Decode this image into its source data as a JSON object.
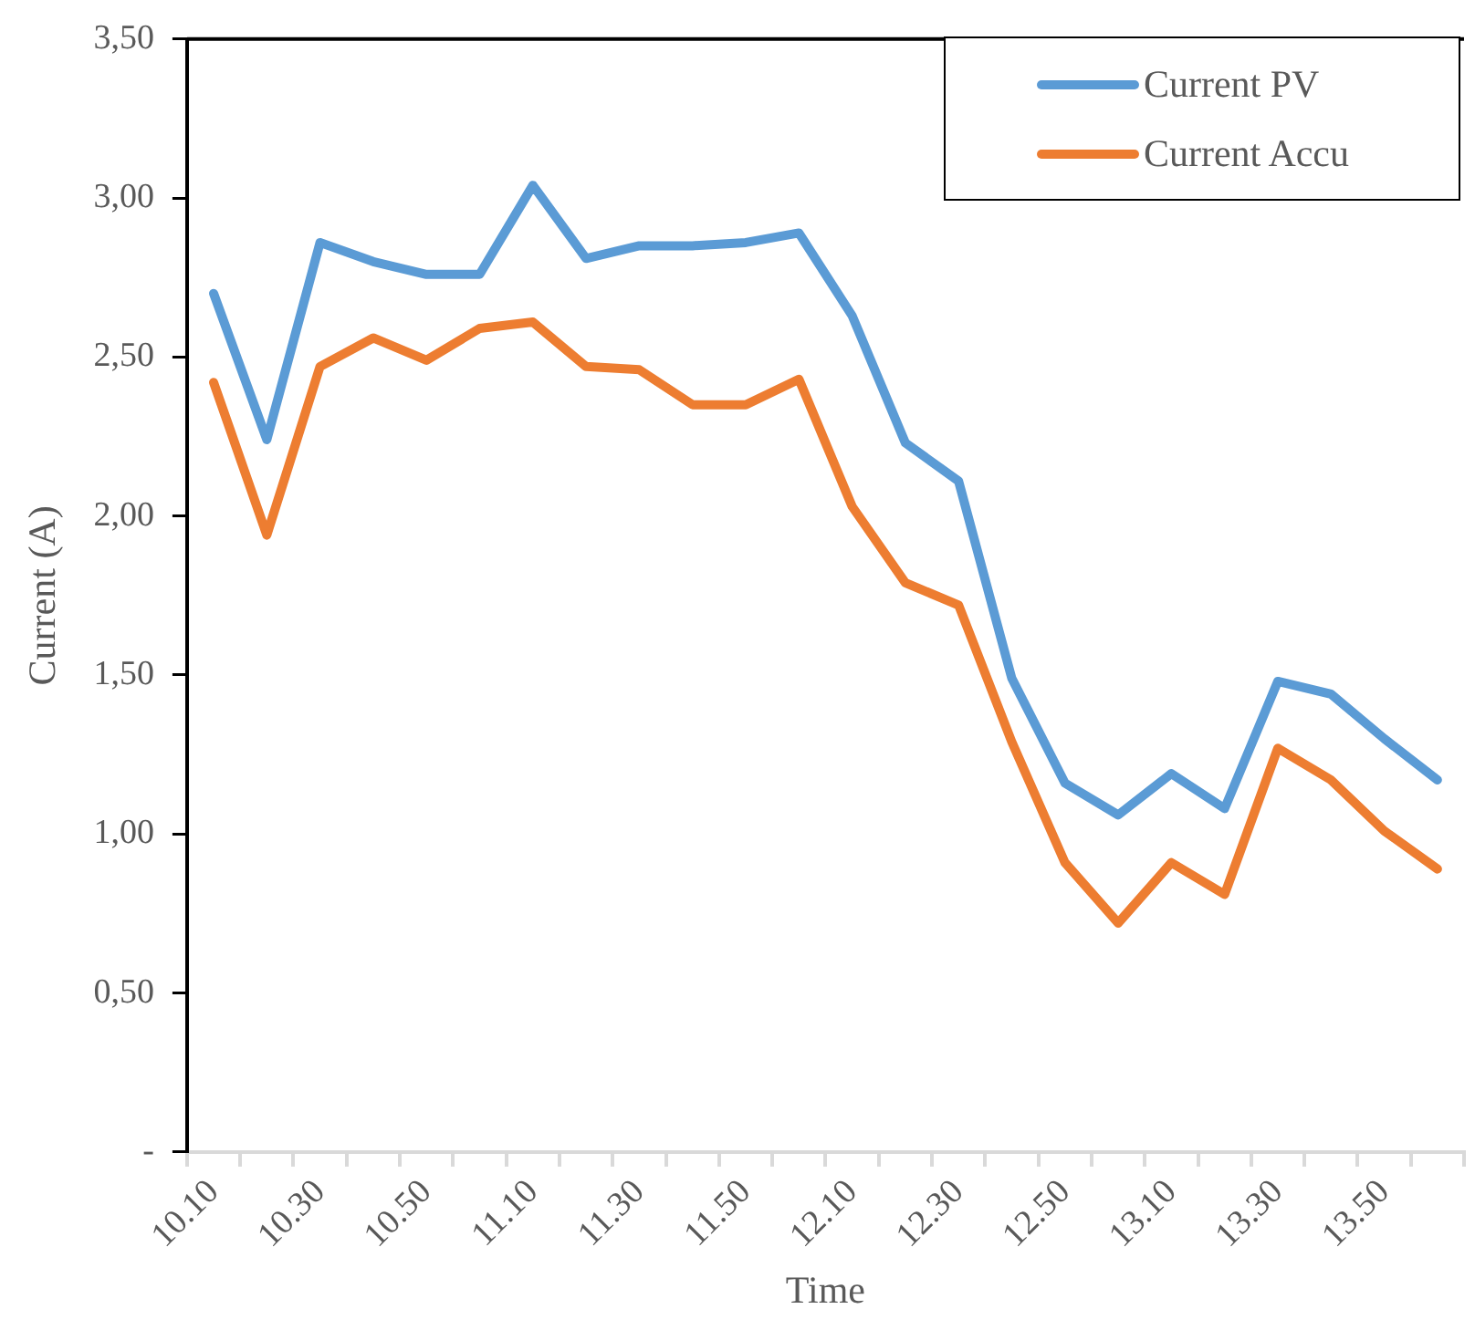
{
  "chart_data": {
    "type": "line",
    "xlabel": "Time",
    "ylabel": "Current (A)",
    "categories": [
      "10.10",
      null,
      "10.30",
      null,
      "10.50",
      null,
      "11.10",
      null,
      "11.30",
      null,
      "11.50",
      null,
      "12.10",
      null,
      "12.30",
      null,
      "12.50",
      null,
      "13.10",
      null,
      "13.30",
      null,
      "13.50",
      null
    ],
    "series": [
      {
        "name": "Current PV",
        "color": "#5b9bd5",
        "values": [
          2.7,
          2.24,
          2.86,
          2.8,
          2.76,
          2.76,
          3.04,
          2.81,
          2.85,
          2.85,
          2.86,
          2.89,
          2.63,
          2.23,
          2.11,
          1.49,
          1.16,
          1.06,
          1.19,
          1.08,
          1.48,
          1.44,
          1.3,
          1.17
        ]
      },
      {
        "name": "Current Accu",
        "color": "#ed7d31",
        "values": [
          2.42,
          1.94,
          2.47,
          2.56,
          2.49,
          2.59,
          2.61,
          2.47,
          2.46,
          2.35,
          2.35,
          2.43,
          2.03,
          1.79,
          1.72,
          1.29,
          0.91,
          0.72,
          0.91,
          0.81,
          1.27,
          1.17,
          1.01,
          0.89
        ]
      }
    ],
    "ylim": [
      0,
      3.5
    ],
    "yticks": [
      {
        "value": 0,
        "label": "-"
      },
      {
        "value": 0.5,
        "label": "0,50"
      },
      {
        "value": 1,
        "label": "1,00"
      },
      {
        "value": 1.5,
        "label": "1,50"
      },
      {
        "value": 2,
        "label": "2,00"
      },
      {
        "value": 2.5,
        "label": "2,50"
      },
      {
        "value": 3,
        "label": "3,00"
      },
      {
        "value": 3.5,
        "label": "3,50"
      }
    ],
    "grid": false,
    "legend": "top right",
    "marker": "none",
    "line_style": "solid"
  }
}
